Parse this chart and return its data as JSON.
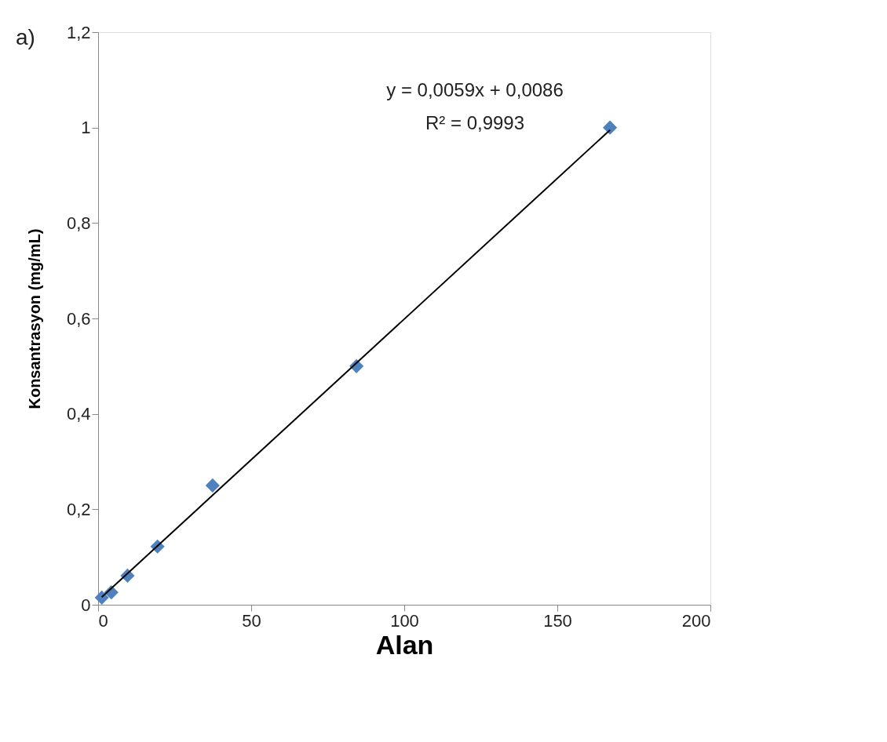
{
  "chart_data": {
    "type": "scatter",
    "xlabel": "Alan",
    "ylabel": "Konsantrasyon (mg/mL)",
    "x": [
      1.2,
      4.3,
      9.6,
      19.4,
      37.4,
      84.4,
      167.2
    ],
    "series": [
      {
        "color": "#4f81bd",
        "marker": "diamond",
        "values": [
          0.015,
          0.026,
          0.061,
          0.122,
          0.25,
          0.5,
          1.0
        ]
      },
      {
        "type": "line",
        "color": "#000000",
        "line_style": "solid",
        "marker": "none",
        "x": [
          1.2,
          167.2
        ],
        "values": [
          0.016,
          0.995
        ]
      }
    ],
    "annotations": [
      "a)",
      "y = 0,0059x + 0,0086",
      "R² = 0,9993"
    ],
    "xlim": [
      0,
      200
    ],
    "xticks": [
      0,
      50,
      100,
      150,
      200
    ],
    "ylim": [
      0,
      1.2
    ],
    "yticks": [
      0,
      {
        "value": 0.2,
        "label": "0,2"
      },
      {
        "value": 0.4,
        "label": "0,4"
      },
      {
        "value": 0.6,
        "label": "0,6"
      },
      {
        "value": 0.8,
        "label": "0,8"
      },
      1,
      {
        "value": 1.2,
        "label": "1,2"
      }
    ],
    "grid": false,
    "legend": false
  }
}
